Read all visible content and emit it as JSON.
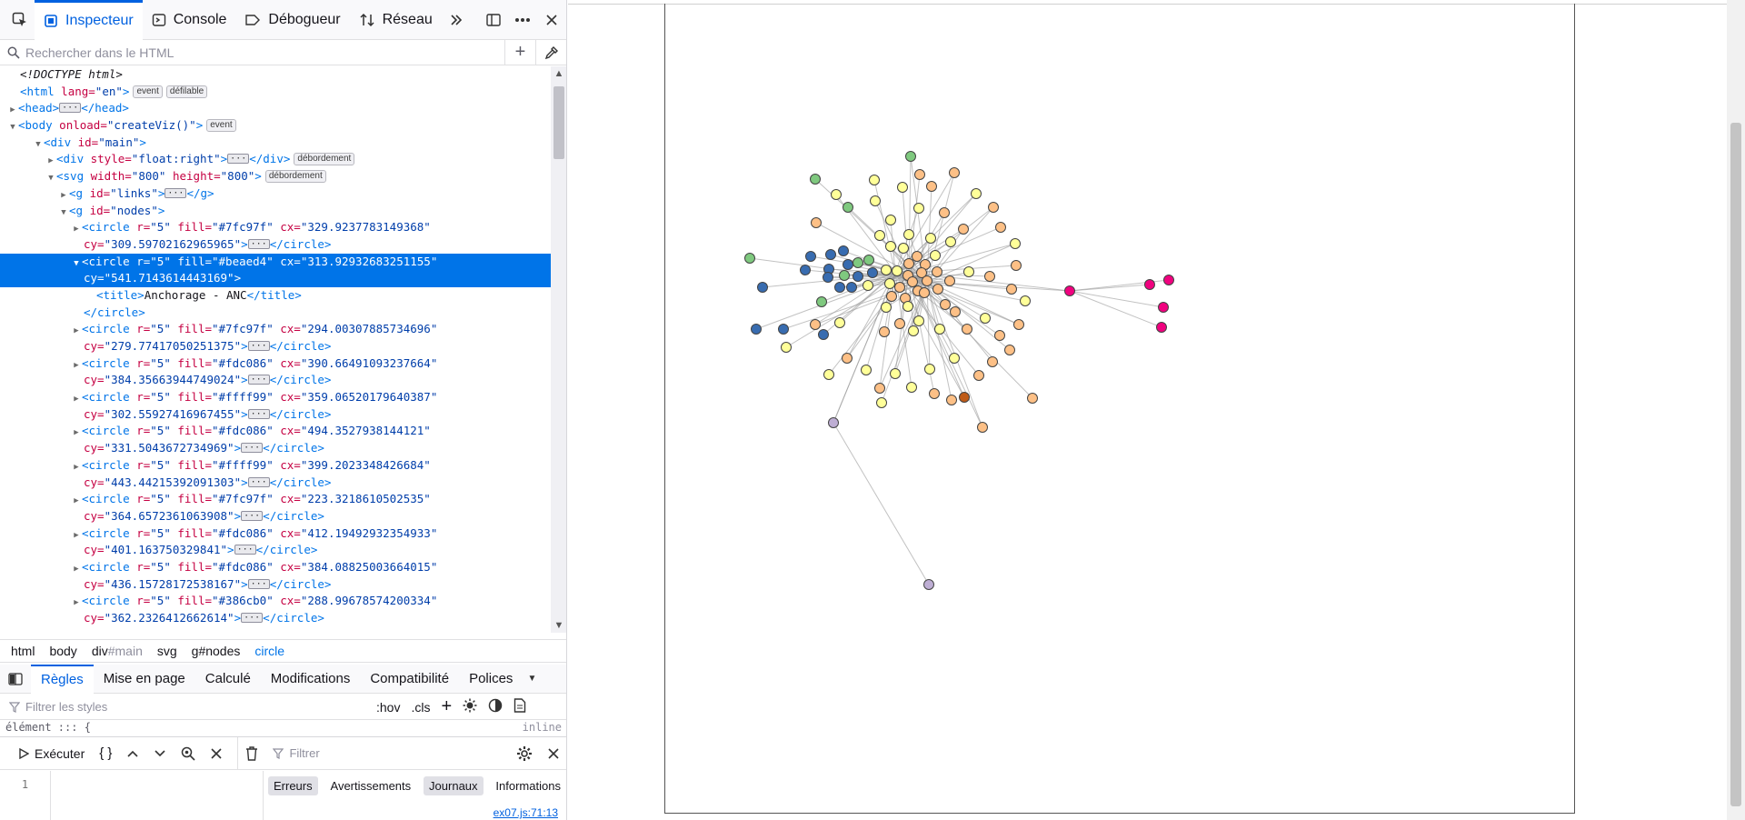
{
  "toolbar": {
    "tabs": [
      {
        "label": "Inspecteur"
      },
      {
        "label": "Console"
      },
      {
        "label": "Débogueur"
      },
      {
        "label": "Réseau"
      }
    ]
  },
  "search": {
    "placeholder": "Rechercher dans le HTML"
  },
  "markup": {
    "l1": "<!DOCTYPE html>",
    "l2_tag": "<html",
    "l2_attr": " lang=",
    "l2_val": "\"en\"",
    "l2_close": ">",
    "l2_b1": "event",
    "l2_b2": "défilable",
    "l3": "<head>",
    "l3_end": "</head>",
    "l4_tag": "<body",
    "l4_attr": " onload=",
    "l4_val": "\"createViz()\"",
    "l4_b": "event",
    "l5_tag": "<div",
    "l5_attr": " id=",
    "l5_val": "\"main\"",
    "l6_tag": "<div",
    "l6_attr": " style=",
    "l6_val": "\"float:right\"",
    "l6_end": "</div>",
    "l6_b": "débordement",
    "l7_tag": "<svg",
    "l7_a1": " width=",
    "l7_v1": "\"800\"",
    "l7_a2": " height=",
    "l7_v2": "\"800\"",
    "l7_b": "débordement",
    "l8_tag": "<g",
    "l8_attr": " id=",
    "l8_val": "\"links\"",
    "l8_end": "</g>",
    "l9_tag": "<g",
    "l9_attr": " id=",
    "l9_val": "\"nodes\"",
    "sel_title_open": "<title>",
    "sel_title_text": "Anchorage - ANC",
    "sel_title_close": "</title>",
    "sel_close": "</circle>",
    "circles": [
      {
        "fill": "\"#7fc97f\"",
        "cx": "\"329.9237783149368\"",
        "cy": "\"309.59702162965965\""
      },
      {
        "fill": "\"#beaed4\"",
        "cx": "\"313.92932683251155\"",
        "cy": "\"541.7143614443169\""
      },
      {
        "fill": "\"#7fc97f\"",
        "cx": "\"294.00307885734696\"",
        "cy": "\"279.77417050251375\""
      },
      {
        "fill": "\"#fdc086\"",
        "cx": "\"390.66491093237664\"",
        "cy": "\"384.35663944749024\""
      },
      {
        "fill": "\"#ffff99\"",
        "cx": "\"359.06520179640387\"",
        "cy": "\"302.55927416967455\""
      },
      {
        "fill": "\"#fdc086\"",
        "cx": "\"494.3527938144121\"",
        "cy": "\"331.5043672734969\""
      },
      {
        "fill": "\"#ffff99\"",
        "cx": "\"399.2023348426684\"",
        "cy": "\"443.44215392091303\""
      },
      {
        "fill": "\"#7fc97f\"",
        "cx": "\"223.3218610502535\"",
        "cy": "\"364.6572361063908\""
      },
      {
        "fill": "\"#fdc086\"",
        "cx": "\"412.19492932354933\"",
        "cy": "\"401.163750329841\""
      },
      {
        "fill": "\"#fdc086\"",
        "cx": "\"384.08825003664015\"",
        "cy": "\"436.15728172538167\""
      },
      {
        "fill": "\"#386cb0\"",
        "cx": "\"288.99678574200334\"",
        "cy": "\"362.2326412662614\""
      }
    ],
    "circle_open": "<circle",
    "r_attr": " r=",
    "r_val": "\"5\"",
    "fill_attr": " fill=",
    "cx_attr": " cx=",
    "cy_attr": "cy=",
    "circle_end": "</circle>"
  },
  "breadcrumbs": [
    {
      "label": "html"
    },
    {
      "label": "body"
    },
    {
      "label": "div",
      "suffix": "#main"
    },
    {
      "label": "svg"
    },
    {
      "label": "g#nodes"
    },
    {
      "label": "circle"
    }
  ],
  "rules_tabs": [
    {
      "label": "Règles"
    },
    {
      "label": "Mise en page"
    },
    {
      "label": "Calculé"
    },
    {
      "label": "Modifications"
    },
    {
      "label": "Compatibilité"
    },
    {
      "label": "Polices"
    }
  ],
  "filter_styles": {
    "placeholder": "Filtrer les styles",
    "hov": ":hov",
    "cls": ".cls"
  },
  "element_line": {
    "left": "élément ::: {",
    "right": "inline"
  },
  "console": {
    "run_label": "Exécuter",
    "braces": "{ }",
    "filter_placeholder": "Filtrer",
    "line_number": "1",
    "filters": [
      {
        "label": "Erreurs",
        "on": true
      },
      {
        "label": "Avertissements",
        "on": false
      },
      {
        "label": "Journaux",
        "on": true
      },
      {
        "label": "Informations",
        "on": false
      }
    ],
    "source": "ex07.js:71:13"
  },
  "colors": {
    "accent": "#0061e0",
    "selection": "#0074e8",
    "green": "#7fc97f",
    "purple": "#beaed4",
    "orange": "#fdc086",
    "yellow": "#ffff99",
    "blue": "#386cb0",
    "magenta": "#f0027f",
    "brown": "#bf5b17"
  },
  "icons": {
    "picker": "element-picker-icon",
    "meatball": "more-options-icon",
    "close": "close-icon",
    "overflow": "chevron-double-right-icon",
    "dock": "dock-icon"
  }
}
